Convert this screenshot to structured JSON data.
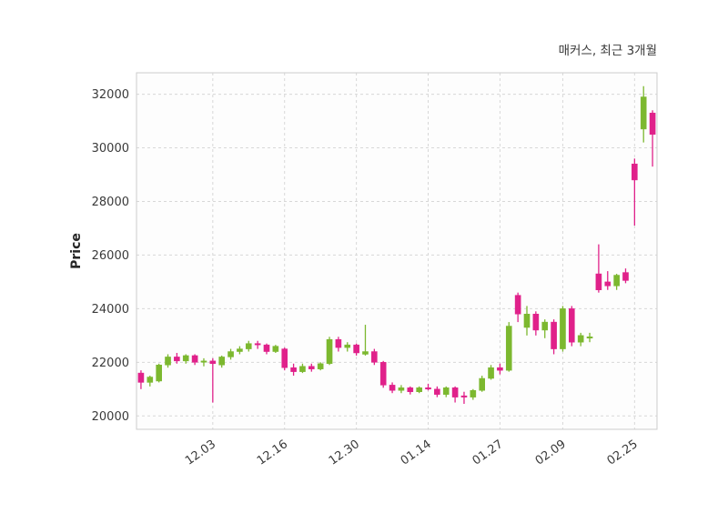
{
  "chart_data": {
    "type": "candlestick",
    "title": "매커스, 최근 3개월",
    "ylabel": "Price",
    "legend": "none",
    "grid": "dashed-both-axes",
    "ylim": [
      19500,
      32800
    ],
    "y_ticks": [
      20000,
      22000,
      24000,
      26000,
      28000,
      30000,
      32000
    ],
    "x_tick_labels": [
      "12.03",
      "12.16",
      "12.30",
      "01.14",
      "01.27",
      "02.09",
      "02.25"
    ],
    "x_tick_indices": [
      8,
      16,
      24,
      32,
      40,
      47,
      55
    ],
    "up_color": "#7cb82f",
    "down_color": "#e0218a",
    "grid_color": "#d8d8d8",
    "spine_color": "#cccccc",
    "tick_label_color": "#3a3a3a",
    "candles": [
      [
        21600,
        21700,
        21000,
        21250
      ],
      [
        21250,
        21500,
        21100,
        21450
      ],
      [
        21300,
        21950,
        21250,
        21900
      ],
      [
        21900,
        22300,
        21800,
        22200
      ],
      [
        22200,
        22350,
        21950,
        22050
      ],
      [
        22050,
        22300,
        21950,
        22250
      ],
      [
        22250,
        22300,
        21900,
        22000
      ],
      [
        22000,
        22150,
        21850,
        22050
      ],
      [
        22050,
        22150,
        20500,
        21950
      ],
      [
        21900,
        22250,
        21800,
        22200
      ],
      [
        22200,
        22500,
        22100,
        22400
      ],
      [
        22400,
        22600,
        22300,
        22500
      ],
      [
        22500,
        22800,
        22400,
        22700
      ],
      [
        22700,
        22800,
        22500,
        22650
      ],
      [
        22650,
        22700,
        22300,
        22400
      ],
      [
        22400,
        22650,
        22350,
        22600
      ],
      [
        22500,
        22550,
        21700,
        21800
      ],
      [
        21800,
        21950,
        21500,
        21650
      ],
      [
        21650,
        21950,
        21600,
        21850
      ],
      [
        21850,
        21950,
        21650,
        21750
      ],
      [
        21750,
        22000,
        21700,
        21950
      ],
      [
        21950,
        22950,
        21900,
        22850
      ],
      [
        22850,
        22950,
        22400,
        22550
      ],
      [
        22550,
        22750,
        22400,
        22650
      ],
      [
        22650,
        22700,
        22250,
        22350
      ],
      [
        22300,
        23400,
        22250,
        22400
      ],
      [
        22400,
        22500,
        21900,
        22000
      ],
      [
        22000,
        22050,
        21050,
        21150
      ],
      [
        21150,
        21250,
        20850,
        20950
      ],
      [
        20950,
        21150,
        20850,
        21050
      ],
      [
        21050,
        21100,
        20800,
        20900
      ],
      [
        20900,
        21100,
        20850,
        21050
      ],
      [
        21050,
        21200,
        20950,
        21000
      ],
      [
        21000,
        21100,
        20700,
        20800
      ],
      [
        20800,
        21100,
        20700,
        21050
      ],
      [
        21050,
        21100,
        20500,
        20700
      ],
      [
        20750,
        20900,
        20450,
        20700
      ],
      [
        20700,
        21000,
        20600,
        20950
      ],
      [
        20950,
        21500,
        20900,
        21400
      ],
      [
        21400,
        21900,
        21350,
        21800
      ],
      [
        21800,
        21950,
        21550,
        21700
      ],
      [
        21700,
        23500,
        21650,
        23350
      ],
      [
        24500,
        24600,
        23500,
        23800
      ],
      [
        23300,
        24100,
        23000,
        23800
      ],
      [
        23800,
        23900,
        23000,
        23200
      ],
      [
        23200,
        23600,
        22900,
        23500
      ],
      [
        23500,
        23600,
        22300,
        22500
      ],
      [
        22500,
        24100,
        22400,
        24000
      ],
      [
        24000,
        24100,
        22600,
        22750
      ],
      [
        22750,
        23100,
        22600,
        23000
      ],
      [
        22900,
        23100,
        22750,
        22950
      ],
      [
        25300,
        26400,
        24600,
        24700
      ],
      [
        25000,
        25400,
        24700,
        24850
      ],
      [
        24850,
        25300,
        24700,
        25250
      ],
      [
        25350,
        25500,
        24950,
        25050
      ],
      [
        29400,
        29600,
        27100,
        28800
      ],
      [
        30700,
        32300,
        30200,
        31900
      ],
      [
        31300,
        31400,
        29300,
        30500
      ]
    ]
  }
}
